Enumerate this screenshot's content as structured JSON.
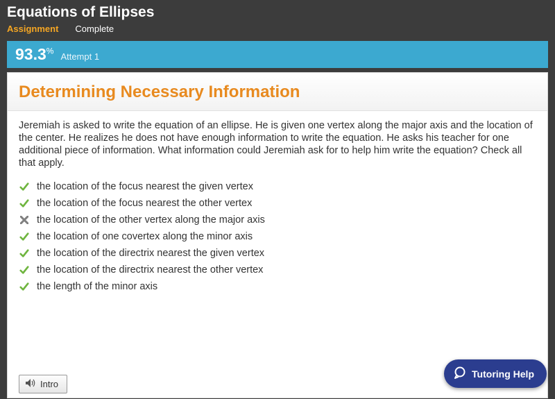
{
  "header": {
    "title": "Equations of Ellipses",
    "tab_assignment": "Assignment",
    "tab_complete": "Complete"
  },
  "score": {
    "value": "93.3",
    "percent_symbol": "%",
    "attempt_label": "Attempt 1"
  },
  "section": {
    "title": "Determining Necessary Information",
    "prompt": "Jeremiah is asked to write the equation of an ellipse. He is given one vertex along the major axis and the location of the center. He realizes he does not have enough information to write the equation. He asks his teacher for one additional piece of information. What information could Jeremiah ask for to help him write the equation? Check all that apply."
  },
  "options": [
    {
      "mark": "check",
      "text": "the location of the focus nearest the given vertex"
    },
    {
      "mark": "check",
      "text": "the location of the focus nearest the other vertex"
    },
    {
      "mark": "x",
      "text": "the location of the other vertex along the major axis"
    },
    {
      "mark": "check",
      "text": "the location of one covertex along the minor axis"
    },
    {
      "mark": "check",
      "text": "the location of the directrix nearest the given vertex"
    },
    {
      "mark": "check",
      "text": "the location of the directrix nearest the other vertex"
    },
    {
      "mark": "check",
      "text": "the length of the minor axis"
    }
  ],
  "footer": {
    "intro_label": "Intro",
    "tutoring_label": "Tutoring Help"
  },
  "colors": {
    "background": "#3c3c3c",
    "score_bar": "#3ca9d0",
    "accent_orange": "#e88a1f",
    "tab_highlight": "#f5a623",
    "check_green": "#6fb53f",
    "x_gray": "#808080",
    "tutoring_bg": "#2b3d8f"
  }
}
